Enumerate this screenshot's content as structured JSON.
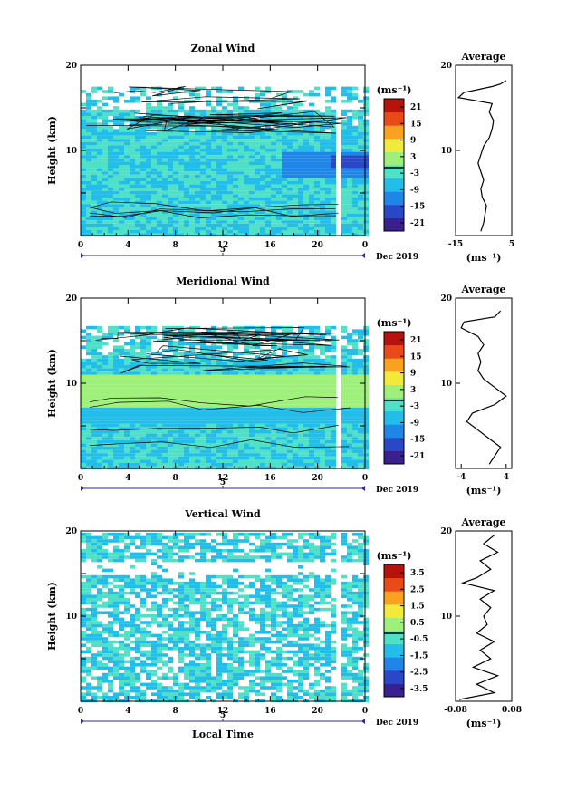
{
  "chart_data": [
    {
      "type": "heatmap",
      "title": "Zonal Wind",
      "xlabel": "",
      "ylabel": "Height (km)",
      "xlim": [
        0,
        24
      ],
      "ylim": [
        0,
        20
      ],
      "x_ticks": [
        "0",
        "4",
        "8",
        "12",
        "16",
        "20",
        "0"
      ],
      "y_ticks": [
        "10",
        "20"
      ],
      "date_axis": {
        "day": "5",
        "label": "Dec 2019"
      },
      "colorbar": {
        "unit": "(ms⁻¹)",
        "ticks": [
          "21",
          "15",
          "9",
          "3",
          "-3",
          "-9",
          "-15",
          "-21"
        ],
        "range": [
          -24,
          24
        ]
      },
      "profile": {
        "title": "Average",
        "xlabel": "(ms⁻¹)",
        "x_ticks": [
          "-15",
          "5"
        ],
        "xlim": [
          -15,
          5
        ],
        "y_ticks": [
          "10",
          "20"
        ],
        "points": [
          [
            -6,
            0.5
          ],
          [
            -5,
            1.5
          ],
          [
            -4.5,
            2.5
          ],
          [
            -4,
            3.5
          ],
          [
            -5.5,
            4.5
          ],
          [
            -6,
            5.5
          ],
          [
            -5,
            6.5
          ],
          [
            -6,
            7.5
          ],
          [
            -7,
            8.5
          ],
          [
            -6,
            9.5
          ],
          [
            -5,
            10.5
          ],
          [
            -3,
            11.5
          ],
          [
            -2,
            12.5
          ],
          [
            -1.5,
            13.5
          ],
          [
            -3,
            14.5
          ],
          [
            -2,
            15.5
          ],
          [
            -14,
            16.2
          ],
          [
            -12,
            16.8
          ],
          [
            -2,
            17.5
          ],
          [
            1,
            17.8
          ],
          [
            3,
            18.2
          ]
        ]
      }
    },
    {
      "type": "heatmap",
      "title": "Meridional Wind",
      "xlabel": "",
      "ylabel": "Height (km)",
      "xlim": [
        0,
        24
      ],
      "ylim": [
        0,
        20
      ],
      "x_ticks": [
        "0",
        "4",
        "8",
        "12",
        "16",
        "20",
        "0"
      ],
      "y_ticks": [
        "10",
        "20"
      ],
      "date_axis": {
        "day": "5",
        "label": "Dec 2019"
      },
      "colorbar": {
        "unit": "(ms⁻¹)",
        "ticks": [
          "21",
          "15",
          "9",
          "3",
          "-3",
          "-9",
          "-15",
          "-21"
        ],
        "range": [
          -24,
          24
        ]
      },
      "profile": {
        "title": "Average",
        "xlabel": "(ms⁻¹)",
        "x_ticks": [
          "-4",
          "4"
        ],
        "xlim": [
          -5,
          5
        ],
        "y_ticks": [
          "10",
          "20"
        ],
        "points": [
          [
            1,
            0.5
          ],
          [
            2,
            1.5
          ],
          [
            3,
            2.5
          ],
          [
            1,
            3.5
          ],
          [
            -1,
            4.5
          ],
          [
            -3,
            5.5
          ],
          [
            -2,
            6.5
          ],
          [
            2,
            7.5
          ],
          [
            4,
            8.5
          ],
          [
            2,
            9.5
          ],
          [
            0,
            10.5
          ],
          [
            -1,
            11.5
          ],
          [
            -0.5,
            12.5
          ],
          [
            -1,
            13.5
          ],
          [
            0,
            14.5
          ],
          [
            -1,
            15.5
          ],
          [
            -4,
            16.5
          ],
          [
            -3.5,
            17.2
          ],
          [
            2,
            17.8
          ],
          [
            3,
            18.5
          ]
        ]
      }
    },
    {
      "type": "heatmap",
      "title": "Vertical Wind",
      "xlabel": "Local Time",
      "ylabel": "Height (km)",
      "xlim": [
        0,
        24
      ],
      "ylim": [
        0,
        20
      ],
      "x_ticks": [
        "0",
        "4",
        "8",
        "12",
        "16",
        "20",
        "0"
      ],
      "y_ticks": [
        "10",
        "20"
      ],
      "date_axis": {
        "day": "5",
        "label": "Dec 2019"
      },
      "colorbar": {
        "unit": "(ms⁻¹)",
        "ticks": [
          "3.5",
          "2.5",
          "1.5",
          "0.5",
          "-0.5",
          "-1.5",
          "-2.5",
          "-3.5"
        ],
        "range": [
          -4,
          4
        ]
      },
      "profile": {
        "title": "Average",
        "xlabel": "(ms⁻¹)",
        "x_ticks": [
          "-0.08",
          "0.08"
        ],
        "xlim": [
          -0.08,
          0.08
        ],
        "y_ticks": [
          "10",
          "20"
        ],
        "points": [
          [
            -0.07,
            0.2
          ],
          [
            0.03,
            1
          ],
          [
            -0.02,
            2
          ],
          [
            0.04,
            3
          ],
          [
            -0.03,
            4
          ],
          [
            0.02,
            5
          ],
          [
            -0.01,
            6
          ],
          [
            0.03,
            7
          ],
          [
            -0.02,
            8
          ],
          [
            0.01,
            9
          ],
          [
            0.0,
            10
          ],
          [
            0.02,
            11
          ],
          [
            -0.01,
            12
          ],
          [
            0.03,
            13
          ],
          [
            -0.06,
            13.9
          ],
          [
            -0.02,
            14.5
          ],
          [
            0.02,
            15.5
          ],
          [
            -0.01,
            16.5
          ],
          [
            0.04,
            17.5
          ],
          [
            0.0,
            18.5
          ],
          [
            0.03,
            19.5
          ]
        ]
      }
    }
  ],
  "colors": {
    "cmap": [
      "#3a1f8f",
      "#2948c8",
      "#1f86e8",
      "#22bde8",
      "#4fe0c8",
      "#9ff07a",
      "#f2ea3a",
      "#f9a21f",
      "#ea4a19",
      "#b8120d"
    ]
  }
}
